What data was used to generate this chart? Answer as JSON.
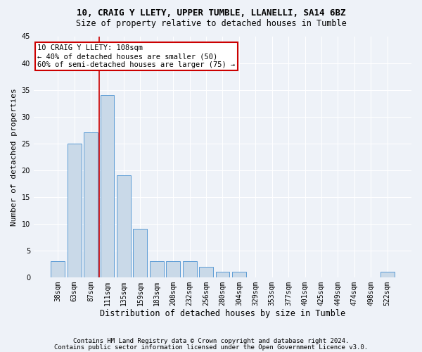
{
  "title1": "10, CRAIG Y LLETY, UPPER TUMBLE, LLANELLI, SA14 6BZ",
  "title2": "Size of property relative to detached houses in Tumble",
  "xlabel": "Distribution of detached houses by size in Tumble",
  "ylabel": "Number of detached properties",
  "categories": [
    "38sqm",
    "63sqm",
    "87sqm",
    "111sqm",
    "135sqm",
    "159sqm",
    "183sqm",
    "208sqm",
    "232sqm",
    "256sqm",
    "280sqm",
    "304sqm",
    "329sqm",
    "353sqm",
    "377sqm",
    "401sqm",
    "425sqm",
    "449sqm",
    "474sqm",
    "498sqm",
    "522sqm"
  ],
  "values": [
    3,
    25,
    27,
    34,
    19,
    9,
    3,
    3,
    3,
    2,
    1,
    1,
    0,
    0,
    0,
    0,
    0,
    0,
    0,
    0,
    1
  ],
  "bar_color": "#c9d9e8",
  "bar_edge_color": "#5b9bd5",
  "vline_index": 3,
  "annotation_line1": "10 CRAIG Y LLETY: 108sqm",
  "annotation_line2": "← 40% of detached houses are smaller (50)",
  "annotation_line3": "60% of semi-detached houses are larger (75) →",
  "annotation_box_color": "#ffffff",
  "annotation_box_edge_color": "#cc0000",
  "vline_color": "#cc0000",
  "ylim": [
    0,
    45
  ],
  "yticks": [
    0,
    5,
    10,
    15,
    20,
    25,
    30,
    35,
    40,
    45
  ],
  "footer1": "Contains HM Land Registry data © Crown copyright and database right 2024.",
  "footer2": "Contains public sector information licensed under the Open Government Licence v3.0.",
  "background_color": "#eef2f8",
  "grid_color": "#ffffff",
  "title1_fontsize": 9,
  "title2_fontsize": 8.5,
  "xlabel_fontsize": 8.5,
  "ylabel_fontsize": 8,
  "tick_fontsize": 7,
  "annotation_fontsize": 7.5,
  "footer_fontsize": 6.5
}
